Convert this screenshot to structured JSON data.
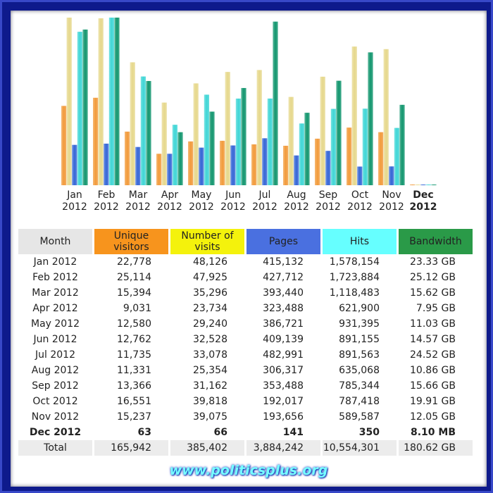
{
  "chart_data": {
    "type": "bar",
    "categories": [
      "Jan 2012",
      "Feb 2012",
      "Mar 2012",
      "Apr 2012",
      "May 2012",
      "Jun 2012",
      "Jul 2012",
      "Aug 2012",
      "Sep 2012",
      "Oct 2012",
      "Nov 2012",
      "Dec 2012"
    ],
    "series": [
      {
        "name": "Unique visitors",
        "color": "#f29a3a",
        "values": [
          22778,
          25114,
          15394,
          9031,
          12580,
          12762,
          11735,
          11331,
          13366,
          16551,
          15237,
          63
        ],
        "value_labels": [
          "22,778",
          "25,114",
          "15,394",
          "9,031",
          "12,580",
          "12,762",
          "11,735",
          "11,331",
          "13,366",
          "16,551",
          "15,237",
          "63"
        ]
      },
      {
        "name": "Number of visits",
        "color": "#e6d88c",
        "values": [
          48126,
          47925,
          35296,
          23734,
          29240,
          32528,
          33078,
          25354,
          31162,
          39818,
          39075,
          66
        ],
        "value_labels": [
          "48,126",
          "47,925",
          "35,296",
          "23,734",
          "29,240",
          "32,528",
          "33,078",
          "25,354",
          "31,162",
          "39,818",
          "39,075",
          "66"
        ]
      },
      {
        "name": "Pages",
        "color": "#3566d6",
        "values": [
          415132,
          427712,
          393440,
          323488,
          386721,
          409139,
          482991,
          306317,
          353488,
          192017,
          193656,
          141
        ],
        "value_labels": [
          "415,132",
          "427,712",
          "393,440",
          "323,488",
          "386,721",
          "409,139",
          "482,991",
          "306,317",
          "353,488",
          "192,017",
          "193,656",
          "141"
        ]
      },
      {
        "name": "Hits",
        "color": "#3fd6d6",
        "values": [
          1578154,
          1723884,
          1118483,
          621900,
          931395,
          891155,
          891563,
          635068,
          785344,
          787418,
          589587,
          350
        ],
        "value_labels": [
          "1,578,154",
          "1,723,884",
          "1,118,483",
          "621,900",
          "931,395",
          "891,155",
          "891,563",
          "635,068",
          "785,344",
          "787,418",
          "589,587",
          "350"
        ]
      },
      {
        "name": "Bandwidth",
        "color": "#12966e",
        "values": [
          23.33,
          25.12,
          15.62,
          7.95,
          11.03,
          14.57,
          24.52,
          10.86,
          15.66,
          19.91,
          12.05,
          0.0081
        ],
        "value_labels": [
          "23.33 GB",
          "25.12 GB",
          "15.62 GB",
          "7.95 GB",
          "11.03 GB",
          "14.57 GB",
          "24.52 GB",
          "10.86 GB",
          "15.66 GB",
          "19.91 GB",
          "12.05 GB",
          "8.10 MB"
        ]
      }
    ]
  },
  "table": {
    "month_header": "Month",
    "header_colors": [
      "#f7941d",
      "#f4f20c",
      "#4a70e0",
      "#66ffff",
      "#2a9a48"
    ],
    "total_label": "Total",
    "totals": [
      "165,942",
      "385,402",
      "3,884,242",
      "10,554,301",
      "180.62 GB"
    ]
  },
  "footer": {
    "text": "www.politicsplus.org"
  }
}
